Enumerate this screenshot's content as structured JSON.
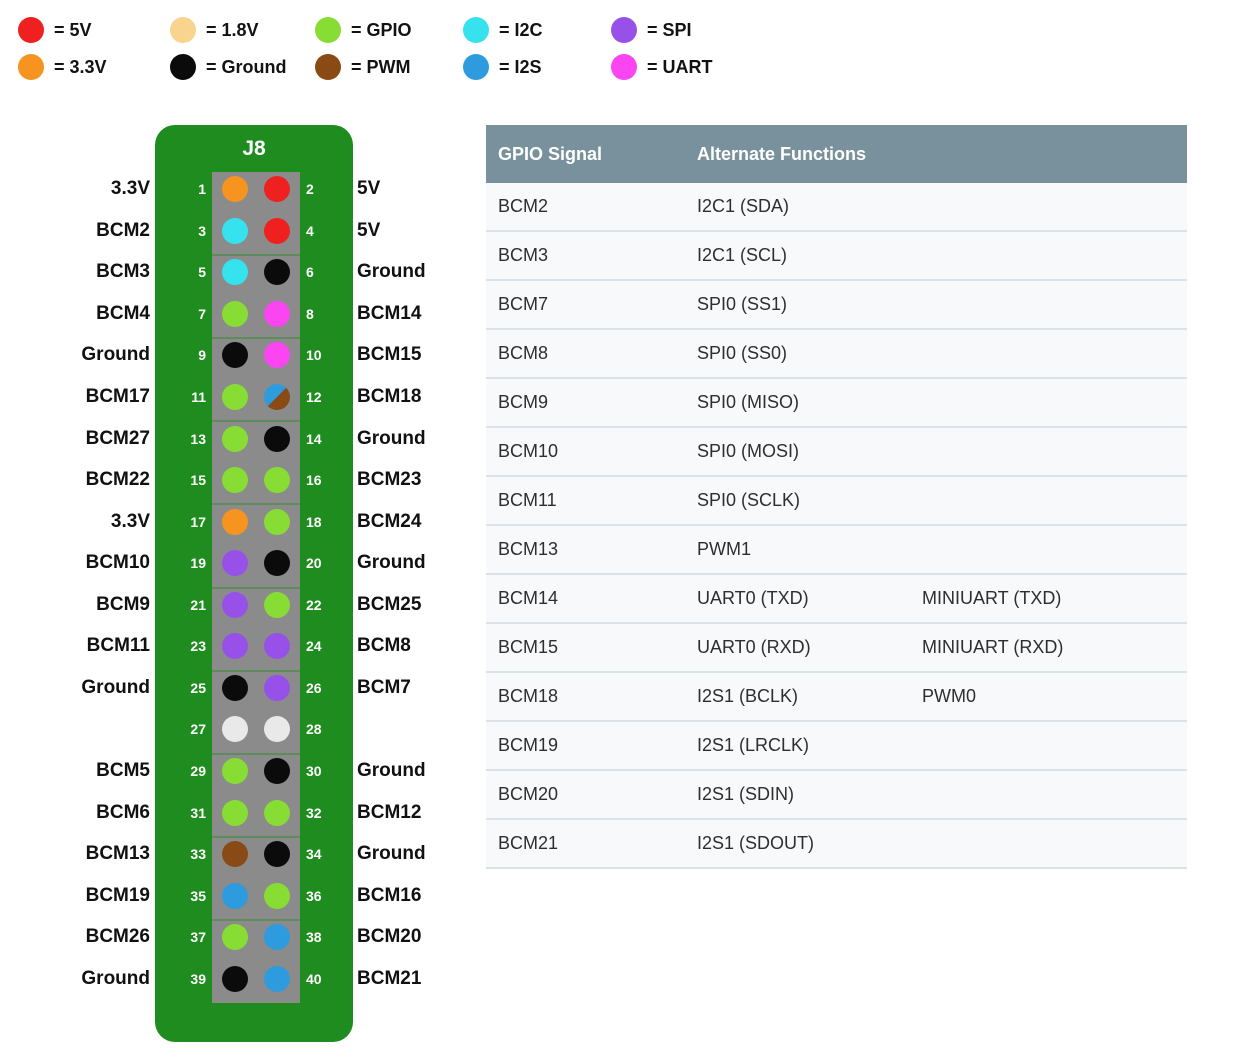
{
  "palette": {
    "5V": "#ee2020",
    "3.3V": "#f6941f",
    "1.8V": "#f8d48e",
    "Ground": "#0b0b0b",
    "GPIO": "#87dd33",
    "PWM": "#8a4a16",
    "I2C": "#35e2ee",
    "I2S": "#2d9bdd",
    "SPI": "#9751e8",
    "UART": "#fb45f0",
    "Reserved": "#e9e9e9",
    "board_green": "#1e8c1e",
    "strip_gray": "#8b8b8b",
    "table_header_bg": "#78919c"
  },
  "legend": {
    "columns": [
      [
        {
          "color": "5V",
          "label": "= 5V"
        },
        {
          "color": "3.3V",
          "label": "= 3.3V"
        }
      ],
      [
        {
          "color": "1.8V",
          "label": "= 1.8V"
        },
        {
          "color": "Ground",
          "label": "= Ground"
        }
      ],
      [
        {
          "color": "GPIO",
          "label": "= GPIO"
        },
        {
          "color": "PWM",
          "label": "= PWM"
        }
      ],
      [
        {
          "color": "I2C",
          "label": "= I2C"
        },
        {
          "color": "I2S",
          "label": "= I2S"
        }
      ],
      [
        {
          "color": "SPI",
          "label": "= SPI"
        },
        {
          "color": "UART",
          "label": "= UART"
        }
      ]
    ]
  },
  "header_label": "J8",
  "pin_rows": [
    {
      "left": {
        "num": "1",
        "label": "3.3V",
        "color": "3.3V"
      },
      "right": {
        "num": "2",
        "label": "5V",
        "color": "5V"
      }
    },
    {
      "left": {
        "num": "3",
        "label": "BCM2",
        "color": "I2C"
      },
      "right": {
        "num": "4",
        "label": "5V",
        "color": "5V"
      }
    },
    {
      "left": {
        "num": "5",
        "label": "BCM3",
        "color": "I2C"
      },
      "right": {
        "num": "6",
        "label": "Ground",
        "color": "Ground"
      }
    },
    {
      "left": {
        "num": "7",
        "label": "BCM4",
        "color": "GPIO"
      },
      "right": {
        "num": "8",
        "label": "BCM14",
        "color": "UART"
      }
    },
    {
      "left": {
        "num": "9",
        "label": "Ground",
        "color": "Ground"
      },
      "right": {
        "num": "10",
        "label": "BCM15",
        "color": "UART"
      }
    },
    {
      "left": {
        "num": "11",
        "label": "BCM17",
        "color": "GPIO"
      },
      "right": {
        "num": "12",
        "label": "BCM18",
        "color": "I2S",
        "color2": "PWM"
      }
    },
    {
      "left": {
        "num": "13",
        "label": "BCM27",
        "color": "GPIO"
      },
      "right": {
        "num": "14",
        "label": "Ground",
        "color": "Ground"
      }
    },
    {
      "left": {
        "num": "15",
        "label": "BCM22",
        "color": "GPIO"
      },
      "right": {
        "num": "16",
        "label": "BCM23",
        "color": "GPIO"
      }
    },
    {
      "left": {
        "num": "17",
        "label": "3.3V",
        "color": "3.3V"
      },
      "right": {
        "num": "18",
        "label": "BCM24",
        "color": "GPIO"
      }
    },
    {
      "left": {
        "num": "19",
        "label": "BCM10",
        "color": "SPI"
      },
      "right": {
        "num": "20",
        "label": "Ground",
        "color": "Ground"
      }
    },
    {
      "left": {
        "num": "21",
        "label": "BCM9",
        "color": "SPI"
      },
      "right": {
        "num": "22",
        "label": "BCM25",
        "color": "GPIO"
      }
    },
    {
      "left": {
        "num": "23",
        "label": "BCM11",
        "color": "SPI"
      },
      "right": {
        "num": "24",
        "label": "BCM8",
        "color": "SPI"
      }
    },
    {
      "left": {
        "num": "25",
        "label": "Ground",
        "color": "Ground"
      },
      "right": {
        "num": "26",
        "label": "BCM7",
        "color": "SPI"
      }
    },
    {
      "left": {
        "num": "27",
        "label": "",
        "color": "Reserved"
      },
      "right": {
        "num": "28",
        "label": "",
        "color": "Reserved"
      }
    },
    {
      "left": {
        "num": "29",
        "label": "BCM5",
        "color": "GPIO"
      },
      "right": {
        "num": "30",
        "label": "Ground",
        "color": "Ground"
      }
    },
    {
      "left": {
        "num": "31",
        "label": "BCM6",
        "color": "GPIO"
      },
      "right": {
        "num": "32",
        "label": "BCM12",
        "color": "GPIO"
      }
    },
    {
      "left": {
        "num": "33",
        "label": "BCM13",
        "color": "PWM"
      },
      "right": {
        "num": "34",
        "label": "Ground",
        "color": "Ground"
      }
    },
    {
      "left": {
        "num": "35",
        "label": "BCM19",
        "color": "I2S"
      },
      "right": {
        "num": "36",
        "label": "BCM16",
        "color": "GPIO"
      }
    },
    {
      "left": {
        "num": "37",
        "label": "BCM26",
        "color": "GPIO"
      },
      "right": {
        "num": "38",
        "label": "BCM20",
        "color": "I2S"
      }
    },
    {
      "left": {
        "num": "39",
        "label": "Ground",
        "color": "Ground"
      },
      "right": {
        "num": "40",
        "label": "BCM21",
        "color": "I2S"
      }
    }
  ],
  "table": {
    "headers": [
      "GPIO Signal",
      "Alternate Functions",
      ""
    ],
    "rows": [
      [
        "BCM2",
        "I2C1 (SDA)",
        ""
      ],
      [
        "BCM3",
        "I2C1 (SCL)",
        ""
      ],
      [
        "BCM7",
        "SPI0 (SS1)",
        ""
      ],
      [
        "BCM8",
        "SPI0 (SS0)",
        ""
      ],
      [
        "BCM9",
        "SPI0 (MISO)",
        ""
      ],
      [
        "BCM10",
        "SPI0 (MOSI)",
        ""
      ],
      [
        "BCM11",
        "SPI0 (SCLK)",
        ""
      ],
      [
        "BCM13",
        "PWM1",
        ""
      ],
      [
        "BCM14",
        "UART0 (TXD)",
        "MINIUART (TXD)"
      ],
      [
        "BCM15",
        "UART0 (RXD)",
        "MINIUART (RXD)"
      ],
      [
        "BCM18",
        "I2S1 (BCLK)",
        "PWM0"
      ],
      [
        "BCM19",
        "I2S1 (LRCLK)",
        ""
      ],
      [
        "BCM20",
        "I2S1 (SDIN)",
        ""
      ],
      [
        "BCM21",
        "I2S1 (SDOUT)",
        ""
      ]
    ]
  }
}
